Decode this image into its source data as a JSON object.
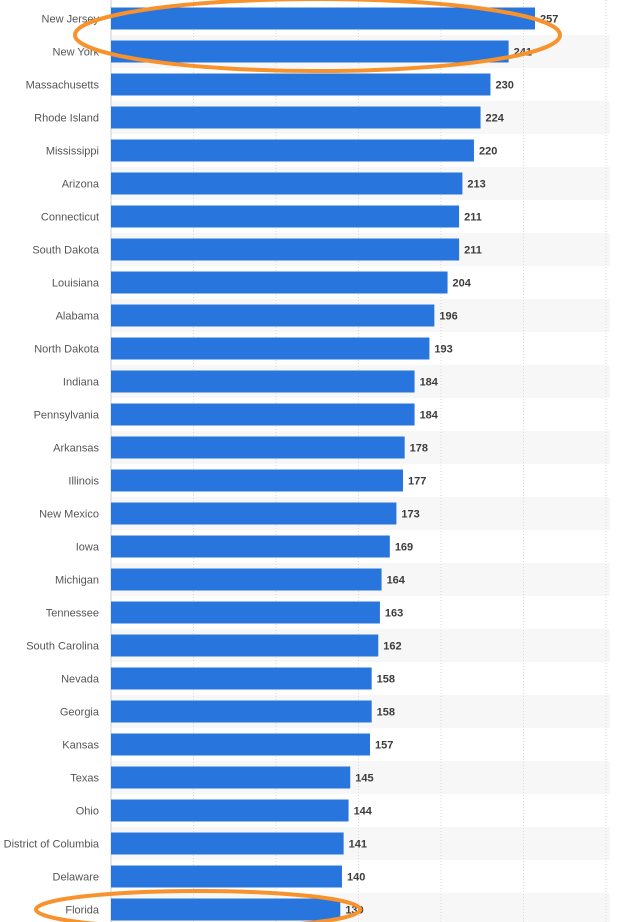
{
  "chart_data": {
    "type": "bar",
    "orientation": "horizontal",
    "categories": [
      "New Jersey",
      "New York",
      "Massachusetts",
      "Rhode Island",
      "Mississippi",
      "Arizona",
      "Connecticut",
      "South Dakota",
      "Louisiana",
      "Alabama",
      "North Dakota",
      "Indiana",
      "Pennsylvania",
      "Arkansas",
      "Illinois",
      "New Mexico",
      "Iowa",
      "Michigan",
      "Tennessee",
      "South Carolina",
      "Nevada",
      "Georgia",
      "Kansas",
      "Texas",
      "Ohio",
      "District of Columbia",
      "Delaware",
      "Florida"
    ],
    "values": [
      257,
      241,
      230,
      224,
      220,
      213,
      211,
      211,
      204,
      196,
      193,
      184,
      184,
      178,
      177,
      173,
      169,
      164,
      163,
      162,
      158,
      158,
      157,
      145,
      144,
      141,
      140,
      139
    ],
    "value_labels": [
      "257",
      "241",
      "230",
      "224",
      "220",
      "213",
      "211",
      "211",
      "204",
      "196",
      "193",
      "184",
      "184",
      "178",
      "177",
      "173",
      "169",
      "164",
      "163",
      "162",
      "158",
      "158",
      "157",
      "145",
      "144",
      "141",
      "140",
      "139"
    ],
    "xlim": [
      0,
      300
    ],
    "grid": true,
    "bar_color": "#2876dd",
    "stripe_color": "#f7f7f7",
    "highlight_color": "#f7922c",
    "highlighted": [
      "New Jersey",
      "New York",
      "Florida"
    ],
    "title": "",
    "xlabel": "",
    "ylabel": ""
  }
}
